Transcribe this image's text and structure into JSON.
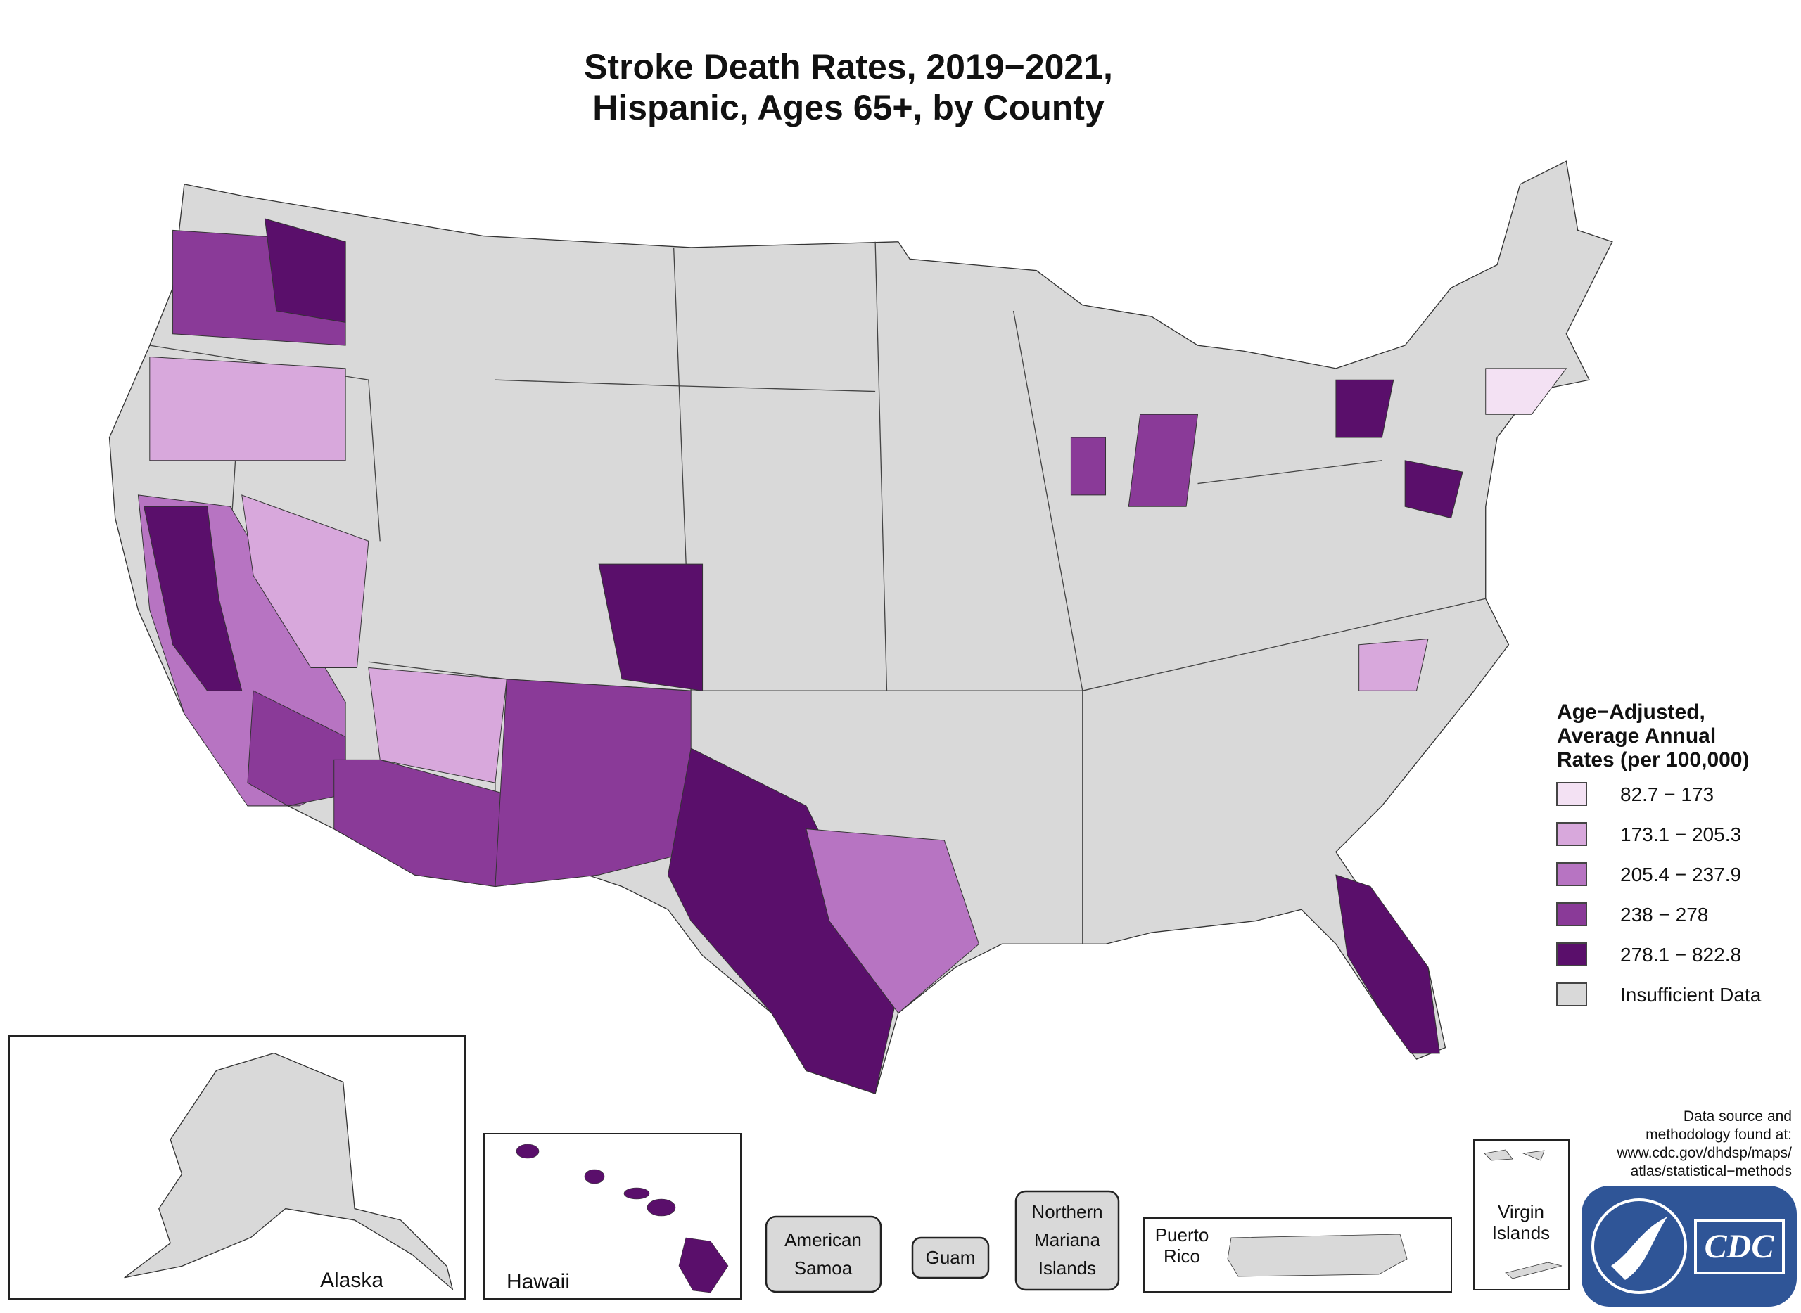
{
  "title": [
    "Stroke Death Rates, 2019−2021,",
    "Hispanic, Ages 65+, by County"
  ],
  "legend": {
    "title": [
      "Age−Adjusted,",
      "Average Annual",
      "Rates (per 100,000)"
    ],
    "items": [
      {
        "label": "82.7 − 173",
        "color": "#f3e1f3"
      },
      {
        "label": "173.1 − 205.3",
        "color": "#d8a8dc"
      },
      {
        "label": "205.4 − 237.9",
        "color": "#b774c2"
      },
      {
        "label": "238 − 278",
        "color": "#8a3a98"
      },
      {
        "label": "278.1 − 822.8",
        "color": "#5a0f6b"
      },
      {
        "label": "Insufficient Data",
        "color": "#d9d9d9"
      }
    ]
  },
  "insets": {
    "alaska": "Alaska",
    "hawaii": "Hawaii",
    "american_samoa": [
      "American",
      "Samoa"
    ],
    "guam": "Guam",
    "northern_mariana": [
      "Northern",
      "Mariana",
      "Islands"
    ],
    "puerto_rico": [
      "Puerto",
      "Rico"
    ],
    "virgin_islands": [
      "Virgin",
      "Islands"
    ]
  },
  "source": [
    "Data source and",
    "methodology found at:",
    "www.cdc.gov/dhdsp/maps/",
    "atlas/statistical−methods"
  ],
  "logo": "CDC"
}
